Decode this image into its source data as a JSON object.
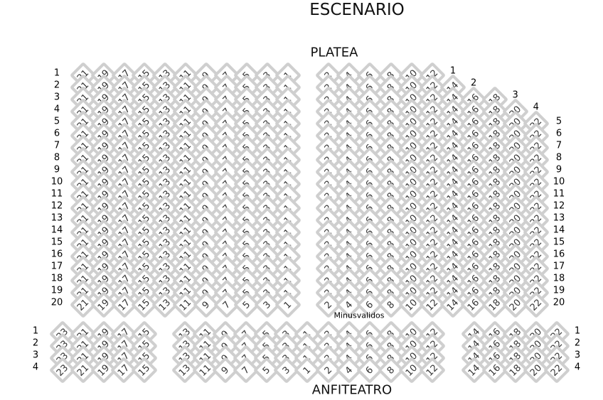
{
  "titles": {
    "stage": "ESCENARIO",
    "platea": "PLATEA",
    "anfiteatro": "ANFITEATRO",
    "note": "Minusvalidos"
  },
  "colors": {
    "seat_border": "#cfcfcf",
    "seat_fill": "#ffffff",
    "text": "#333333"
  },
  "platea": {
    "rows": [
      {
        "label": "1",
        "left": [
          21,
          19,
          17,
          15,
          13,
          11,
          9,
          7,
          5,
          3,
          1
        ],
        "right": [
          2,
          4,
          6,
          8,
          10,
          12
        ]
      },
      {
        "label": "2",
        "left": [
          21,
          19,
          17,
          15,
          13,
          11,
          9,
          7,
          5,
          3,
          1
        ],
        "right": [
          2,
          4,
          6,
          8,
          10,
          12,
          14
        ]
      },
      {
        "label": "3",
        "left": [
          21,
          19,
          17,
          15,
          13,
          11,
          9,
          7,
          5,
          3,
          1
        ],
        "right": [
          2,
          4,
          6,
          8,
          10,
          12,
          14,
          16,
          18
        ]
      },
      {
        "label": "4",
        "left": [
          21,
          19,
          17,
          15,
          13,
          11,
          9,
          7,
          5,
          3,
          1
        ],
        "right": [
          2,
          4,
          6,
          8,
          10,
          12,
          14,
          16,
          18,
          20
        ]
      },
      {
        "label": "5",
        "left": [
          21,
          19,
          17,
          15,
          13,
          11,
          9,
          7,
          5,
          3,
          1
        ],
        "right": [
          2,
          4,
          6,
          8,
          10,
          12,
          14,
          16,
          18,
          20,
          22
        ]
      },
      {
        "label": "6",
        "left": [
          21,
          19,
          17,
          15,
          13,
          11,
          9,
          7,
          5,
          3,
          1
        ],
        "right": [
          2,
          4,
          6,
          8,
          10,
          12,
          14,
          16,
          18,
          20,
          22
        ]
      },
      {
        "label": "7",
        "left": [
          21,
          19,
          17,
          15,
          13,
          11,
          9,
          7,
          5,
          3,
          1
        ],
        "right": [
          2,
          4,
          6,
          8,
          10,
          12,
          14,
          16,
          18,
          20,
          22
        ]
      },
      {
        "label": "8",
        "left": [
          21,
          19,
          17,
          15,
          13,
          11,
          9,
          7,
          5,
          3,
          1
        ],
        "right": [
          2,
          4,
          6,
          8,
          10,
          12,
          14,
          16,
          18,
          20,
          22
        ]
      },
      {
        "label": "9",
        "left": [
          21,
          19,
          17,
          15,
          13,
          11,
          9,
          7,
          5,
          3,
          1
        ],
        "right": [
          2,
          4,
          6,
          8,
          10,
          12,
          14,
          16,
          18,
          20,
          22
        ]
      },
      {
        "label": "10",
        "left": [
          21,
          19,
          17,
          15,
          13,
          11,
          9,
          7,
          5,
          3,
          1
        ],
        "right": [
          2,
          4,
          6,
          8,
          10,
          12,
          14,
          16,
          18,
          20,
          22
        ]
      },
      {
        "label": "11",
        "left": [
          21,
          19,
          17,
          15,
          13,
          11,
          9,
          7,
          5,
          3,
          1
        ],
        "right": [
          2,
          4,
          6,
          8,
          10,
          12,
          14,
          16,
          18,
          20,
          22
        ]
      },
      {
        "label": "12",
        "left": [
          21,
          19,
          17,
          15,
          13,
          11,
          9,
          7,
          5,
          3,
          1
        ],
        "right": [
          2,
          4,
          6,
          8,
          10,
          12,
          14,
          16,
          18,
          20,
          22
        ]
      },
      {
        "label": "13",
        "left": [
          21,
          19,
          17,
          15,
          13,
          11,
          9,
          7,
          5,
          3,
          1
        ],
        "right": [
          2,
          4,
          6,
          8,
          10,
          12,
          14,
          16,
          18,
          20,
          22
        ]
      },
      {
        "label": "14",
        "left": [
          21,
          19,
          17,
          15,
          13,
          11,
          9,
          7,
          5,
          3,
          1
        ],
        "right": [
          2,
          4,
          6,
          8,
          10,
          12,
          14,
          16,
          18,
          20,
          22
        ]
      },
      {
        "label": "15",
        "left": [
          21,
          19,
          17,
          15,
          13,
          11,
          9,
          7,
          5,
          3,
          1
        ],
        "right": [
          2,
          4,
          6,
          8,
          10,
          12,
          14,
          16,
          18,
          20,
          22
        ]
      },
      {
        "label": "16",
        "left": [
          21,
          19,
          17,
          15,
          13,
          11,
          9,
          7,
          5,
          3,
          1
        ],
        "right": [
          2,
          4,
          6,
          8,
          10,
          12,
          14,
          16,
          18,
          20,
          22
        ]
      },
      {
        "label": "17",
        "left": [
          21,
          19,
          17,
          15,
          13,
          11,
          9,
          7,
          5,
          3,
          1
        ],
        "right": [
          2,
          4,
          6,
          8,
          10,
          12,
          14,
          16,
          18,
          20,
          22
        ]
      },
      {
        "label": "18",
        "left": [
          21,
          19,
          17,
          15,
          13,
          11,
          9,
          7,
          5,
          3,
          1
        ],
        "right": [
          2,
          4,
          6,
          8,
          10,
          12,
          14,
          16,
          18,
          20,
          22
        ]
      },
      {
        "label": "19",
        "left": [
          21,
          19,
          17,
          15,
          13,
          11,
          9,
          7,
          5,
          3,
          1
        ],
        "right": [
          2,
          4,
          6,
          8,
          10,
          12,
          14,
          16,
          18,
          20,
          22
        ]
      },
      {
        "label": "20",
        "left": [
          21,
          19,
          17,
          15,
          13,
          11,
          9,
          7,
          5,
          3,
          1
        ],
        "right": [
          2,
          4,
          6,
          8,
          10,
          12,
          14,
          16,
          18,
          20,
          22
        ]
      }
    ]
  },
  "anfiteatro": {
    "rows": [
      {
        "label": "1",
        "seats": [
          23,
          21,
          19,
          17,
          15,
          13,
          11,
          9,
          7,
          5,
          3,
          1,
          2,
          4,
          6,
          8,
          10,
          12,
          14,
          16,
          18,
          20,
          22
        ]
      },
      {
        "label": "2",
        "seats": [
          23,
          21,
          19,
          17,
          15,
          13,
          11,
          9,
          7,
          5,
          3,
          1,
          2,
          4,
          6,
          8,
          10,
          12,
          14,
          16,
          18,
          20,
          22
        ]
      },
      {
        "label": "3",
        "seats": [
          23,
          21,
          19,
          17,
          15,
          13,
          11,
          9,
          7,
          5,
          3,
          1,
          2,
          4,
          6,
          8,
          10,
          12,
          14,
          16,
          18,
          20,
          22
        ]
      },
      {
        "label": "4",
        "seats": [
          23,
          21,
          19,
          17,
          15,
          13,
          11,
          9,
          7,
          5,
          3,
          1,
          2,
          4,
          6,
          8,
          10,
          12,
          14,
          16,
          18,
          20,
          22
        ]
      }
    ]
  }
}
